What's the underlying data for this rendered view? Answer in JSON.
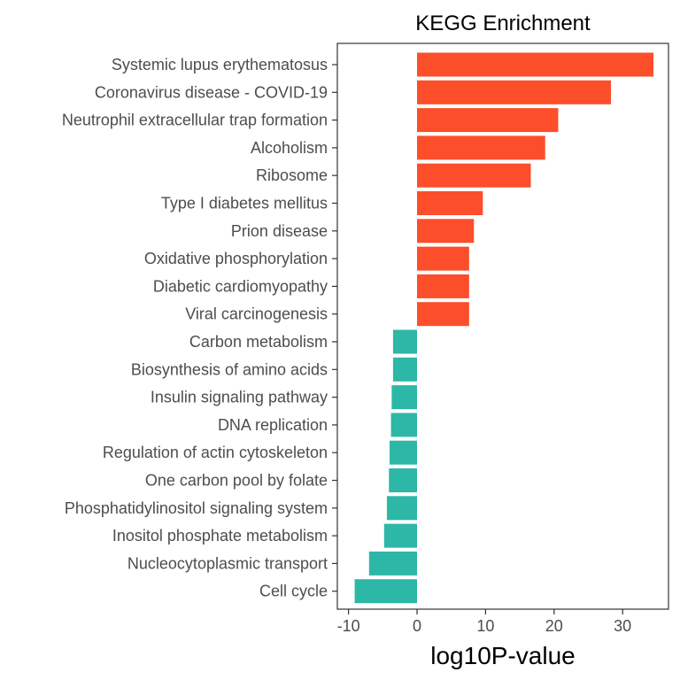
{
  "chart_data": {
    "type": "bar",
    "orientation": "horizontal",
    "title": "KEGG Enrichment",
    "xlabel": "log10P-value",
    "ylabel": "",
    "xlim": [
      -11,
      36
    ],
    "xticks": [
      -10,
      0,
      10,
      20,
      30
    ],
    "xtick_labels": [
      "-10",
      "0",
      "10",
      "20",
      "30"
    ],
    "grid": false,
    "legend": "none",
    "colors": {
      "positive": "#FC4E2A",
      "negative": "#2DB7A6"
    },
    "categories": [
      "Systemic lupus erythematosus",
      "Coronavirus disease - COVID-19",
      "Neutrophil extracellular trap formation",
      "Alcoholism",
      "Ribosome",
      "Type I diabetes mellitus",
      "Prion disease",
      "Oxidative phosphorylation",
      "Diabetic cardiomyopathy",
      "Viral carcinogenesis",
      "Carbon metabolism",
      "Biosynthesis of amino acids",
      "Insulin signaling pathway",
      "DNA replication",
      "Regulation of actin cytoskeleton",
      "One carbon pool by folate",
      "Phosphatidylinositol signaling system",
      "Inositol phosphate metabolism",
      "Nucleocytoplasmic transport",
      "Cell cycle"
    ],
    "values": [
      34.5,
      28.3,
      20.6,
      18.7,
      16.6,
      9.6,
      8.3,
      7.6,
      7.6,
      7.6,
      -3.5,
      -3.5,
      -3.7,
      -3.8,
      -4.0,
      -4.1,
      -4.4,
      -4.8,
      -7.0,
      -9.1
    ]
  }
}
